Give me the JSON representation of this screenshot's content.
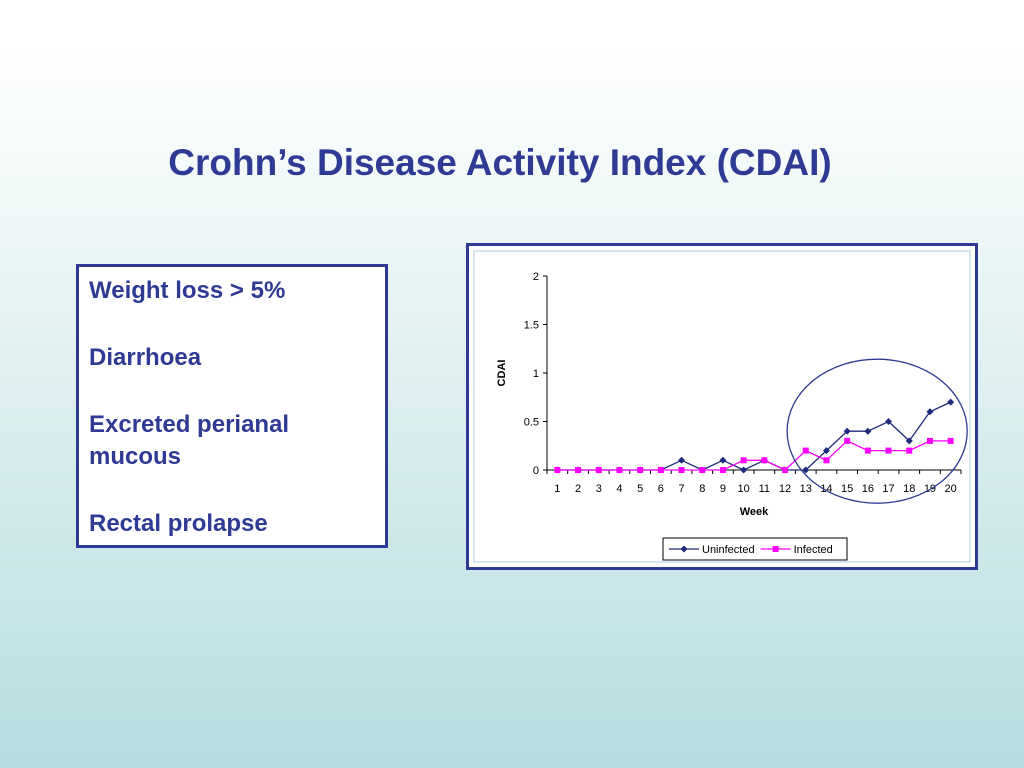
{
  "slide": {
    "title": "Crohn’s Disease Activity Index (CDAI)"
  },
  "symptoms": [
    "Weight loss > 5%",
    "Diarrhoea",
    "Excreted perianal mucous",
    "Rectal prolapse"
  ],
  "colors": {
    "title": "#2e3a93",
    "uninfected": "#1f2a7a",
    "infected": "#ff00ff"
  },
  "chart_data": {
    "type": "line",
    "xlabel": "Week",
    "ylabel": "CDAI",
    "x": [
      1,
      2,
      3,
      4,
      5,
      6,
      7,
      8,
      9,
      10,
      11,
      12,
      13,
      14,
      15,
      16,
      17,
      18,
      19,
      20
    ],
    "ylim": [
      0,
      2
    ],
    "yticks": [
      "0",
      "0.5",
      "1",
      "1.5",
      "2"
    ],
    "grid": false,
    "legend_position": "bottom",
    "series": [
      {
        "name": "Uninfected",
        "marker": "diamond",
        "values": [
          0,
          0,
          0,
          0,
          0,
          0,
          0.1,
          0,
          0.1,
          0,
          0.1,
          0,
          0,
          0.2,
          0.4,
          0.4,
          0.5,
          0.3,
          0.6,
          0.7
        ]
      },
      {
        "name": "Infected",
        "marker": "square",
        "values": [
          0,
          0,
          0,
          0,
          0,
          0,
          0,
          0,
          0,
          0.1,
          0.1,
          0,
          0.2,
          0.1,
          0.3,
          0.2,
          0.2,
          0.2,
          0.3,
          0.3
        ]
      }
    ],
    "annotation": "ellipse highlighting weeks 13-20"
  }
}
